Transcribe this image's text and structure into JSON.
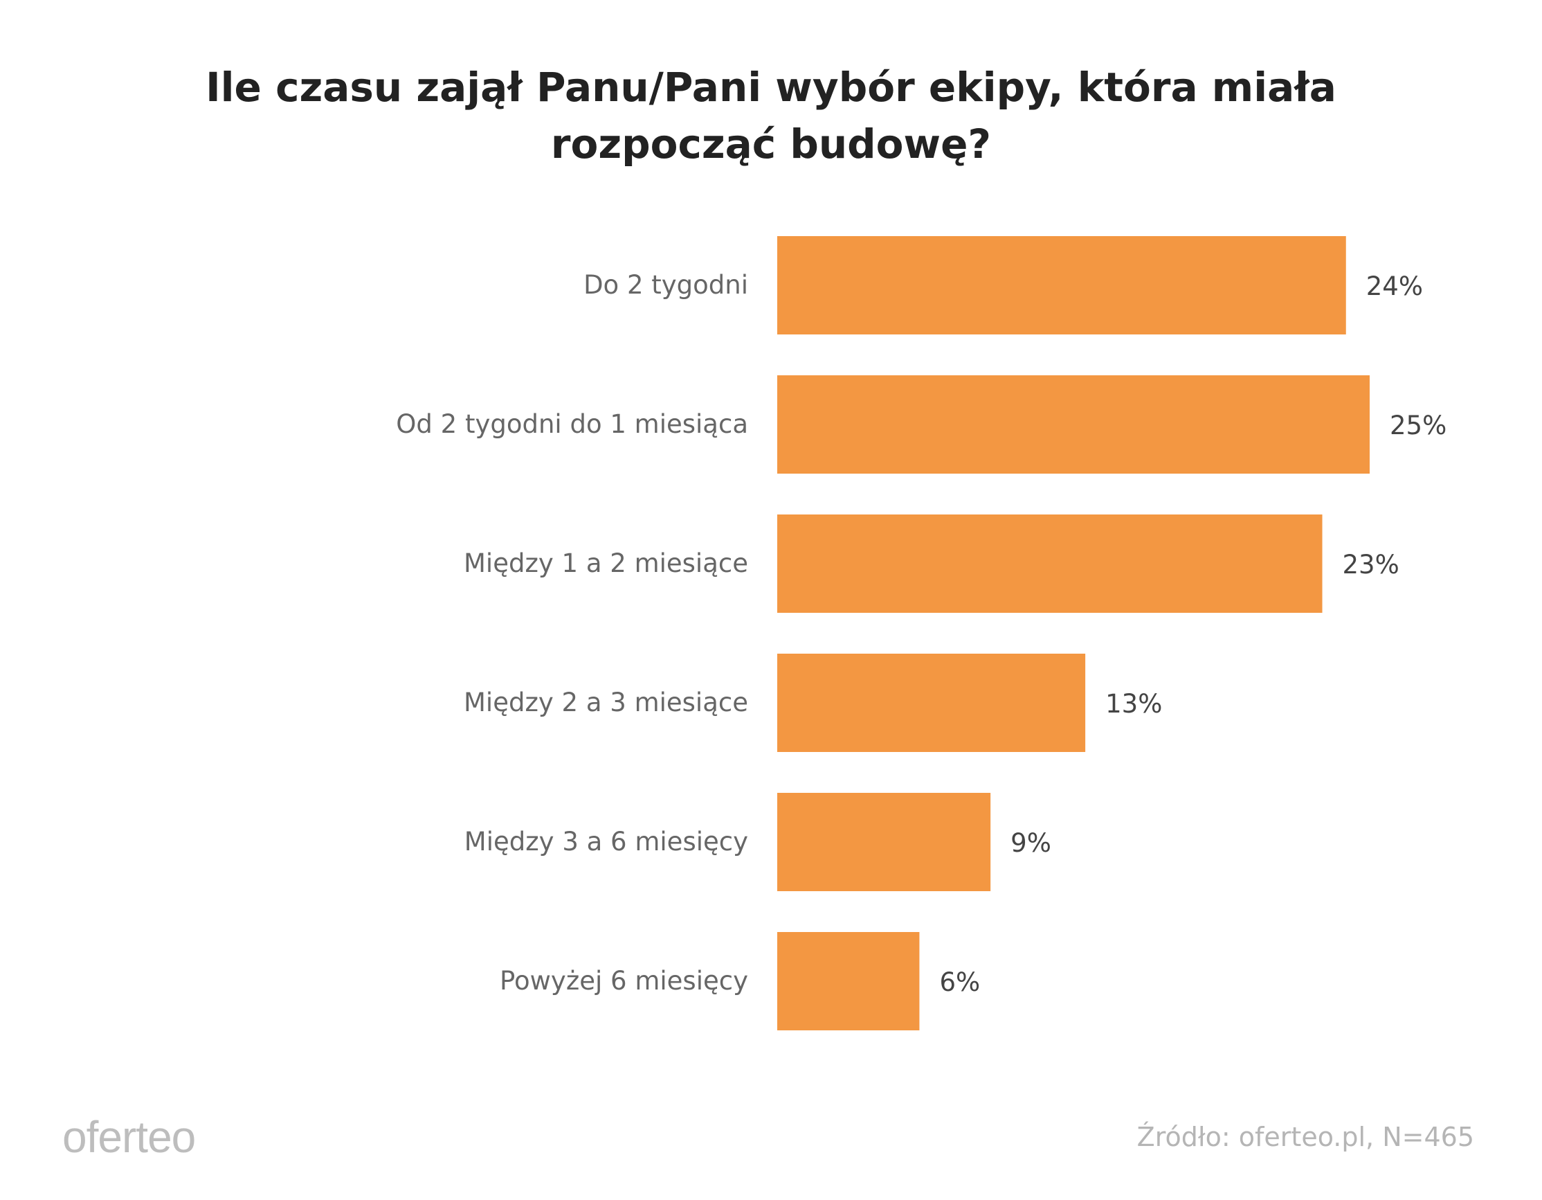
{
  "chart_data": {
    "type": "bar",
    "orientation": "horizontal",
    "title": "Ile czasu zajął Panu/Pani wybór ekipy, która miała rozpocząć budowę?",
    "title_lines": [
      "Ile czasu zajął Panu/Pani wybór ekipy, która miała",
      "rozpocząć budowę?"
    ],
    "categories": [
      "Do 2 tygodni",
      "Od 2 tygodni do 1 miesiąca",
      "Między 1 a 2 miesiące",
      "Między 2 a 3 miesiące",
      "Między 3 a 6 miesięcy",
      "Powyżej 6 miesięcy"
    ],
    "values": [
      24,
      25,
      23,
      13,
      9,
      6
    ],
    "value_labels": [
      "24%",
      "25%",
      "23%",
      "13%",
      "9%",
      "6%"
    ],
    "unit": "%",
    "xlim": [
      0,
      25
    ],
    "grid": false,
    "bar_color": "#F39742"
  },
  "footer": {
    "logo": "oferteo",
    "source": "Źródło: oferteo.pl, N=465"
  }
}
